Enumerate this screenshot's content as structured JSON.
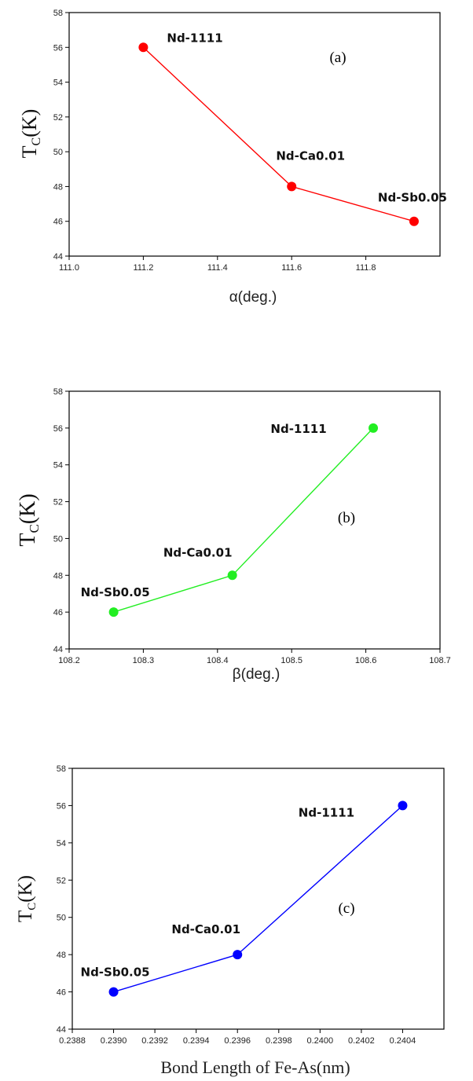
{
  "chart_data": [
    {
      "type": "line",
      "panel": "(a)",
      "ylabel": "T",
      "ylabel_sub": "C",
      "ylabel_unit": "(K)",
      "xlabel": "α(deg.)",
      "xlim": [
        111.0,
        112.0
      ],
      "ylim": [
        44,
        58
      ],
      "x_ticks": [
        "111.0",
        "111.2",
        "111.4",
        "111.6",
        "111.8"
      ],
      "x_tick_values": [
        111.0,
        111.2,
        111.4,
        111.6,
        111.8
      ],
      "y_ticks": [
        "44",
        "46",
        "48",
        "50",
        "52",
        "54",
        "56",
        "58"
      ],
      "y_tick_values": [
        44,
        46,
        48,
        50,
        52,
        54,
        56,
        58
      ],
      "color": "#ff0000",
      "series": [
        {
          "x": [
            111.2,
            111.6,
            111.93
          ],
          "y": [
            56,
            48,
            46
          ],
          "labels": [
            "Nd-1111",
            "Nd-Ca0.01",
            "Nd-Sb0.05"
          ]
        }
      ]
    },
    {
      "type": "line",
      "panel": "(b)",
      "ylabel": "T",
      "ylabel_sub": "C",
      "ylabel_unit": "(K)",
      "xlabel": "β(deg.)",
      "xlim": [
        108.2,
        108.7
      ],
      "ylim": [
        44,
        58
      ],
      "x_ticks": [
        "108.2",
        "108.3",
        "108.4",
        "108.5",
        "108.6",
        "108.7"
      ],
      "x_tick_values": [
        108.2,
        108.3,
        108.4,
        108.5,
        108.6,
        108.7
      ],
      "y_ticks": [
        "44",
        "46",
        "48",
        "50",
        "52",
        "54",
        "56",
        "58"
      ],
      "y_tick_values": [
        44,
        46,
        48,
        50,
        52,
        54,
        56,
        58
      ],
      "color": "#22ee22",
      "series": [
        {
          "x": [
            108.26,
            108.42,
            108.61
          ],
          "y": [
            46,
            48,
            56
          ],
          "labels": [
            "Nd-Sb0.05",
            "Nd-Ca0.01",
            "Nd-1111"
          ]
        }
      ]
    },
    {
      "type": "line",
      "panel": "(c)",
      "ylabel": "T",
      "ylabel_sub": "C",
      "ylabel_unit": "(K)",
      "xlabel": "Bond Length of Fe-As(nm)",
      "xlim": [
        0.2388,
        0.2406
      ],
      "ylim": [
        44,
        58
      ],
      "x_ticks": [
        "0.2388",
        "0.2390",
        "0.2392",
        "0.2394",
        "0.2396",
        "0.2398",
        "0.2400",
        "0.2402",
        "0.2404"
      ],
      "x_tick_values": [
        0.2388,
        0.239,
        0.2392,
        0.2394,
        0.2396,
        0.2398,
        0.24,
        0.2402,
        0.2404
      ],
      "y_ticks": [
        "44",
        "46",
        "48",
        "50",
        "52",
        "54",
        "56",
        "58"
      ],
      "y_tick_values": [
        44,
        46,
        48,
        50,
        52,
        54,
        56,
        58
      ],
      "color": "#0000ff",
      "series": [
        {
          "x": [
            0.239,
            0.2396,
            0.2404
          ],
          "y": [
            46,
            48,
            56
          ],
          "labels": [
            "Nd-Sb0.05",
            "Nd-Ca0.01",
            "Nd-1111"
          ]
        }
      ]
    }
  ]
}
